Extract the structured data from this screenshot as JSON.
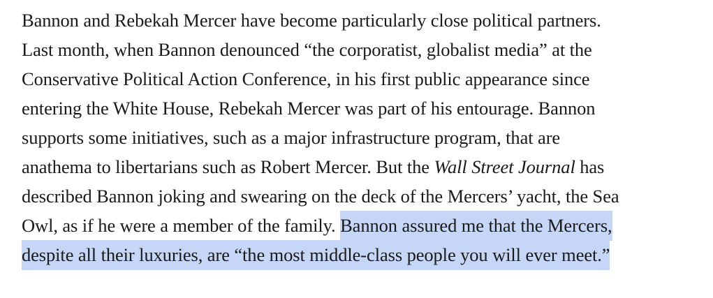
{
  "article": {
    "lines": [
      "Bannon and Rebekah Mercer have become particularly close political partners.",
      "Last month, when Bannon denounced “the corporatist, globalist media” at the",
      "Conservative Political Action Conference, in his first public appearance since",
      "entering the White House, Rebekah Mercer was part of his entourage. Bannon",
      "supports some initiatives, such as a major infrastructure program, that are"
    ],
    "line6_before": "anathema to libertarians such as Robert Mercer. But the ",
    "line6_italic": "Wall Street Journal",
    "line6_after": " has",
    "line7": "described Bannon joking and swearing on the deck of the Mercers’ yacht, the Sea",
    "line8_plain": "Owl, as if he were a member of the family. ",
    "line8_highlight": "Bannon assured me that the Mercers,",
    "line9_highlight": "despite all their luxuries, are “the most middle-class people you will ever meet.”"
  },
  "colors": {
    "text": "#1a1a1a",
    "highlight": "#c5d6f6",
    "background": "#ffffff"
  }
}
